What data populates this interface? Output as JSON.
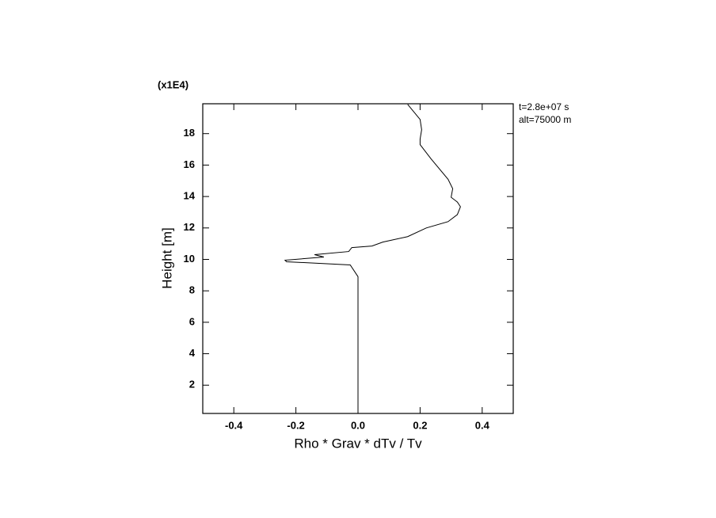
{
  "chart_data": {
    "type": "line",
    "xlabel": "Rho * Grav * dTv / Tv",
    "ylabel": "Height [m]",
    "yscale_label": "(x1E4)",
    "annotations": [
      "t=2.8e+07 s",
      "alt=75000 m"
    ],
    "color": "#000000",
    "x": [
      0.0,
      0.0,
      -0.025,
      -0.23,
      -0.235,
      -0.11,
      -0.14,
      -0.03,
      -0.02,
      0.045,
      0.08,
      0.16,
      0.22,
      0.29,
      0.32,
      0.33,
      0.32,
      0.3,
      0.305,
      0.29,
      0.235,
      0.2,
      0.2,
      0.205,
      0.2,
      0.16
    ],
    "y": [
      0.2,
      8.9,
      9.65,
      9.85,
      9.95,
      10.15,
      10.3,
      10.5,
      10.75,
      10.85,
      11.1,
      11.45,
      12.0,
      12.4,
      12.85,
      13.35,
      13.65,
      13.95,
      14.5,
      15.1,
      16.4,
      17.3,
      17.65,
      18.25,
      18.9,
      19.86
    ],
    "xlim": [
      -0.5,
      0.5
    ],
    "ylim": [
      0.2,
      19.9
    ],
    "xticks": [
      -0.4,
      -0.2,
      {
        "value": 0,
        "label": "0.0"
      },
      0.2,
      0.4
    ],
    "yticks": [
      2,
      4,
      6,
      8,
      10,
      12,
      14,
      16,
      18
    ]
  }
}
